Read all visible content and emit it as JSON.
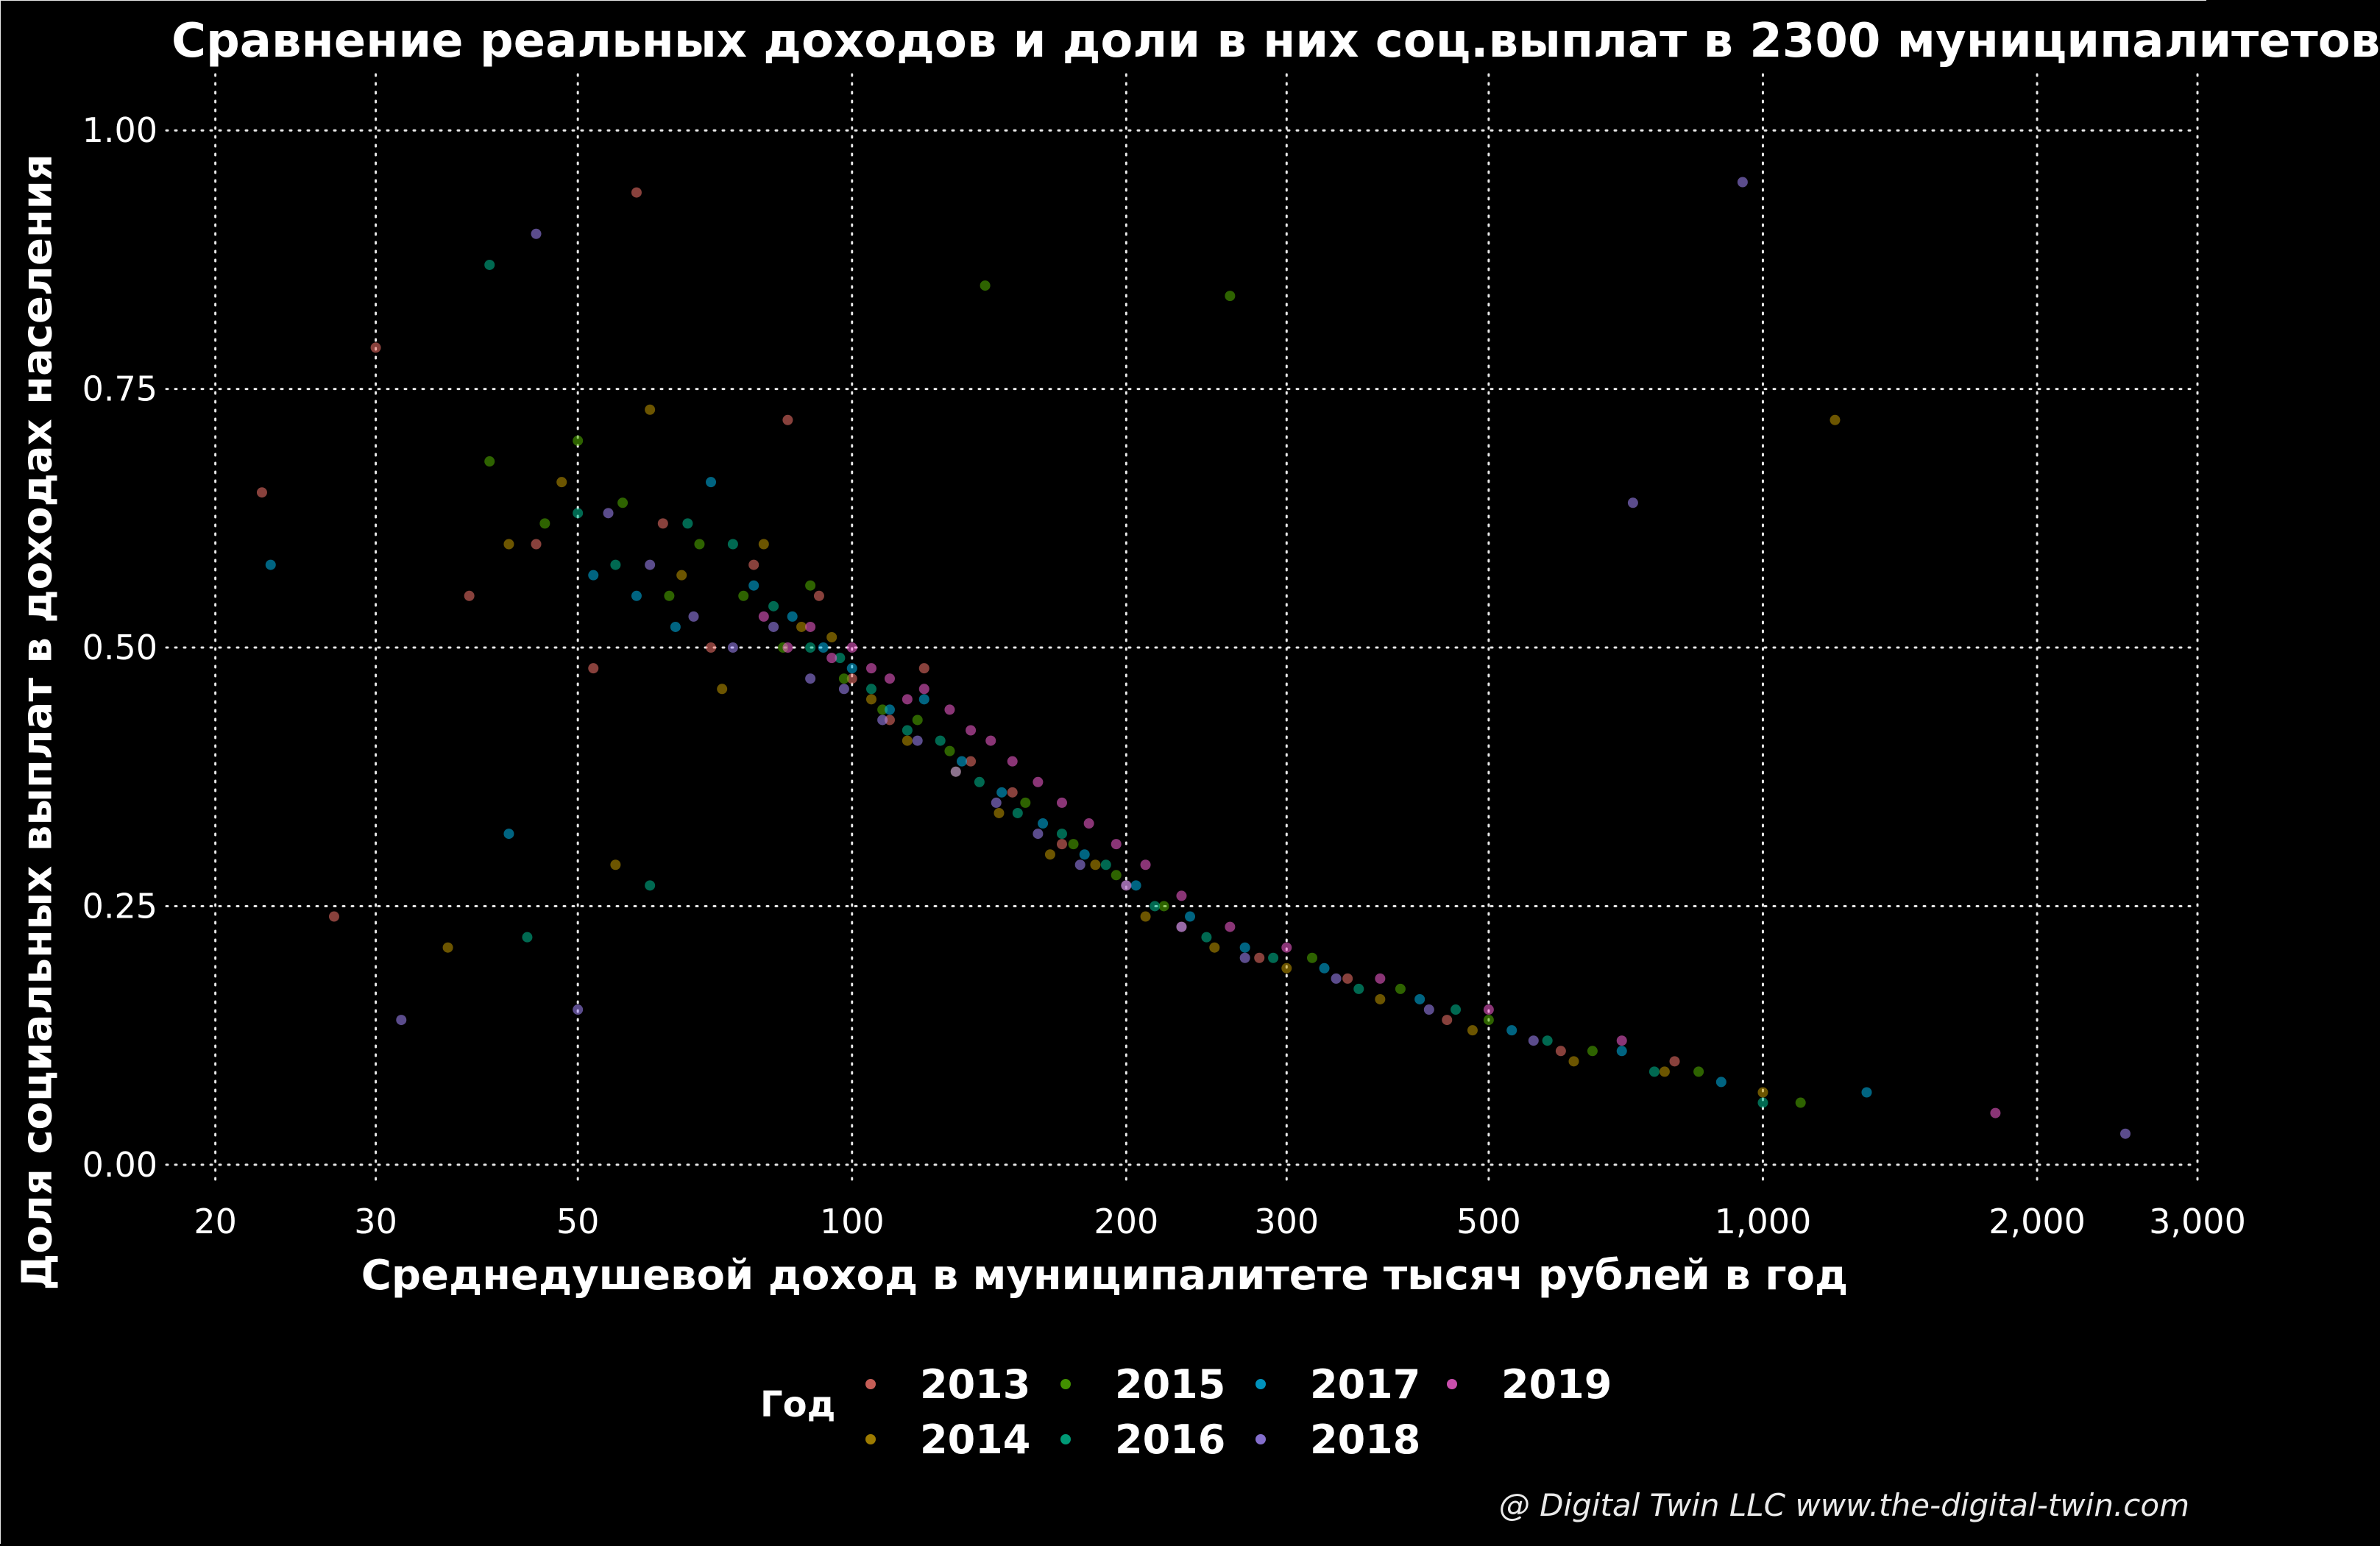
{
  "title": "Сравнение реальных доходов и доли в них соц.выплат в 2300 муниципалитетов",
  "credit": "@ Digital Twin LLC www.the-digital-twin.com",
  "chart_data": {
    "type": "scatter",
    "xlabel": "Среднедушевой доход в муниципалитете тысяч рублей в год",
    "ylabel": "Доля социальных выплат в доходах населения",
    "x_scale": "log",
    "xlim": [
      18,
      3000
    ],
    "ylim": [
      -0.02,
      1.04
    ],
    "grid": true,
    "x_ticks": [
      20,
      30,
      50,
      100,
      200,
      300,
      500,
      1000,
      2000,
      3000
    ],
    "x_tick_labels": [
      "20",
      "30",
      "50",
      "100",
      "200",
      "300",
      "500",
      "1,000",
      "2,000",
      "3,000"
    ],
    "y_ticks": [
      0,
      0.25,
      0.5,
      0.75,
      1.0
    ],
    "y_tick_labels": [
      "0.00",
      "0.25",
      "0.50",
      "0.75",
      "1.00"
    ],
    "legend": {
      "title": "Год",
      "placement": "bottom"
    },
    "series": [
      {
        "name": "2013",
        "color": "#F8766D",
        "points": [
          [
            22.5,
            0.65
          ],
          [
            27,
            0.24
          ],
          [
            30,
            0.79
          ],
          [
            38,
            0.55
          ],
          [
            45,
            0.6
          ],
          [
            52,
            0.48
          ],
          [
            58,
            0.94
          ],
          [
            62,
            0.62
          ],
          [
            70,
            0.5
          ],
          [
            78,
            0.58
          ],
          [
            85,
            0.72
          ],
          [
            92,
            0.55
          ],
          [
            100,
            0.47
          ],
          [
            110,
            0.43
          ],
          [
            120,
            0.48
          ],
          [
            135,
            0.39
          ],
          [
            150,
            0.36
          ],
          [
            170,
            0.31
          ],
          [
            200,
            0.27
          ],
          [
            230,
            0.23
          ],
          [
            280,
            0.2
          ],
          [
            350,
            0.18
          ],
          [
            450,
            0.14
          ],
          [
            600,
            0.11
          ],
          [
            800,
            0.1
          ]
        ]
      },
      {
        "name": "2014",
        "color": "#C49A00",
        "points": [
          [
            36,
            0.21
          ],
          [
            42,
            0.6
          ],
          [
            48,
            0.66
          ],
          [
            55,
            0.29
          ],
          [
            60,
            0.73
          ],
          [
            65,
            0.57
          ],
          [
            72,
            0.46
          ],
          [
            80,
            0.6
          ],
          [
            88,
            0.52
          ],
          [
            95,
            0.51
          ],
          [
            105,
            0.45
          ],
          [
            115,
            0.41
          ],
          [
            130,
            0.38
          ],
          [
            145,
            0.34
          ],
          [
            165,
            0.3
          ],
          [
            185,
            0.29
          ],
          [
            210,
            0.24
          ],
          [
            250,
            0.21
          ],
          [
            300,
            0.19
          ],
          [
            380,
            0.16
          ],
          [
            480,
            0.13
          ],
          [
            620,
            0.1
          ],
          [
            780,
            0.09
          ],
          [
            1000,
            0.07
          ],
          [
            1200,
            0.72
          ]
        ]
      },
      {
        "name": "2015",
        "color": "#53B400",
        "points": [
          [
            40,
            0.68
          ],
          [
            46,
            0.62
          ],
          [
            50,
            0.7
          ],
          [
            56,
            0.64
          ],
          [
            63,
            0.55
          ],
          [
            68,
            0.6
          ],
          [
            76,
            0.55
          ],
          [
            84,
            0.5
          ],
          [
            90,
            0.56
          ],
          [
            98,
            0.47
          ],
          [
            108,
            0.44
          ],
          [
            118,
            0.43
          ],
          [
            128,
            0.4
          ],
          [
            140,
            0.85
          ],
          [
            155,
            0.35
          ],
          [
            175,
            0.31
          ],
          [
            195,
            0.28
          ],
          [
            220,
            0.25
          ],
          [
            260,
            0.84
          ],
          [
            320,
            0.2
          ],
          [
            400,
            0.17
          ],
          [
            500,
            0.14
          ],
          [
            650,
            0.11
          ],
          [
            850,
            0.09
          ],
          [
            1100,
            0.06
          ]
        ]
      },
      {
        "name": "2016",
        "color": "#00C094",
        "points": [
          [
            40,
            0.87
          ],
          [
            44,
            0.22
          ],
          [
            50,
            0.63
          ],
          [
            55,
            0.58
          ],
          [
            60,
            0.27
          ],
          [
            66,
            0.62
          ],
          [
            74,
            0.6
          ],
          [
            82,
            0.54
          ],
          [
            90,
            0.5
          ],
          [
            97,
            0.49
          ],
          [
            105,
            0.46
          ],
          [
            115,
            0.42
          ],
          [
            125,
            0.41
          ],
          [
            138,
            0.37
          ],
          [
            152,
            0.34
          ],
          [
            170,
            0.32
          ],
          [
            190,
            0.29
          ],
          [
            215,
            0.25
          ],
          [
            245,
            0.22
          ],
          [
            290,
            0.2
          ],
          [
            360,
            0.17
          ],
          [
            460,
            0.15
          ],
          [
            580,
            0.12
          ],
          [
            760,
            0.09
          ],
          [
            1000,
            0.06
          ]
        ]
      },
      {
        "name": "2017",
        "color": "#00B6EB",
        "points": [
          [
            23,
            0.58
          ],
          [
            42,
            0.32
          ],
          [
            52,
            0.57
          ],
          [
            58,
            0.55
          ],
          [
            64,
            0.52
          ],
          [
            70,
            0.66
          ],
          [
            78,
            0.56
          ],
          [
            86,
            0.53
          ],
          [
            93,
            0.5
          ],
          [
            100,
            0.48
          ],
          [
            110,
            0.44
          ],
          [
            120,
            0.45
          ],
          [
            132,
            0.39
          ],
          [
            146,
            0.36
          ],
          [
            162,
            0.33
          ],
          [
            180,
            0.3
          ],
          [
            205,
            0.27
          ],
          [
            235,
            0.24
          ],
          [
            270,
            0.21
          ],
          [
            330,
            0.19
          ],
          [
            420,
            0.16
          ],
          [
            530,
            0.13
          ],
          [
            700,
            0.11
          ],
          [
            900,
            0.08
          ],
          [
            1300,
            0.07
          ]
        ]
      },
      {
        "name": "2018",
        "color": "#A58AFF",
        "points": [
          [
            32,
            0.14
          ],
          [
            45,
            0.9
          ],
          [
            50,
            0.15
          ],
          [
            54,
            0.63
          ],
          [
            60,
            0.58
          ],
          [
            67,
            0.53
          ],
          [
            74,
            0.5
          ],
          [
            82,
            0.52
          ],
          [
            90,
            0.47
          ],
          [
            98,
            0.46
          ],
          [
            108,
            0.43
          ],
          [
            118,
            0.41
          ],
          [
            130,
            0.38
          ],
          [
            144,
            0.35
          ],
          [
            160,
            0.32
          ],
          [
            178,
            0.29
          ],
          [
            200,
            0.27
          ],
          [
            230,
            0.23
          ],
          [
            270,
            0.2
          ],
          [
            340,
            0.18
          ],
          [
            430,
            0.15
          ],
          [
            560,
            0.12
          ],
          [
            720,
            0.64
          ],
          [
            950,
            0.95
          ],
          [
            2500,
            0.03
          ]
        ]
      },
      {
        "name": "2019",
        "color": "#FB61D7",
        "points": [
          [
            80,
            0.53
          ],
          [
            85,
            0.5
          ],
          [
            90,
            0.52
          ],
          [
            95,
            0.49
          ],
          [
            100,
            0.5
          ],
          [
            105,
            0.48
          ],
          [
            110,
            0.47
          ],
          [
            115,
            0.45
          ],
          [
            120,
            0.46
          ],
          [
            128,
            0.44
          ],
          [
            135,
            0.42
          ],
          [
            142,
            0.41
          ],
          [
            150,
            0.39
          ],
          [
            160,
            0.37
          ],
          [
            170,
            0.35
          ],
          [
            182,
            0.33
          ],
          [
            195,
            0.31
          ],
          [
            210,
            0.29
          ],
          [
            230,
            0.26
          ],
          [
            260,
            0.23
          ],
          [
            300,
            0.21
          ],
          [
            380,
            0.18
          ],
          [
            500,
            0.15
          ],
          [
            700,
            0.12
          ],
          [
            1800,
            0.05
          ]
        ]
      }
    ]
  }
}
